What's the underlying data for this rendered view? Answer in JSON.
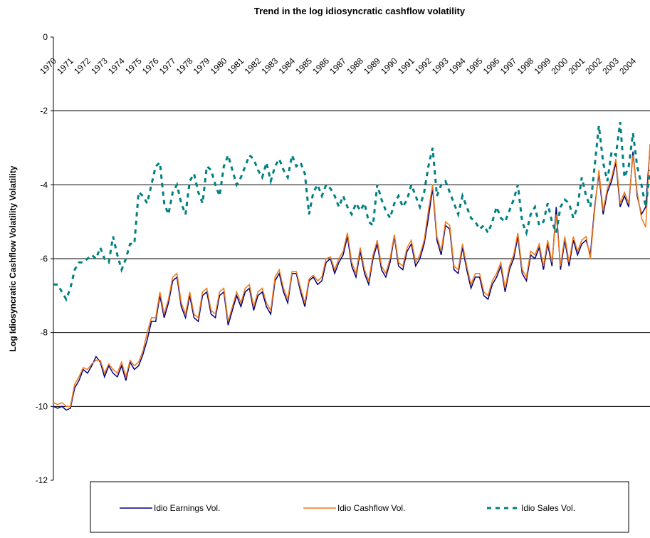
{
  "chart_data": {
    "type": "line",
    "title": "Trend in the log idiosyncratic cashflow volatility",
    "y_label": "Log Idiosyncratic Cashflow Volatility Volatility",
    "x": [
      1970,
      1970.25,
      1970.5,
      1970.75,
      1971,
      1971.25,
      1971.5,
      1971.75,
      1972,
      1972.25,
      1972.5,
      1972.75,
      1973,
      1973.25,
      1973.5,
      1973.75,
      1974,
      1974.25,
      1974.5,
      1974.75,
      1975,
      1975.25,
      1975.5,
      1975.75,
      1976,
      1976.25,
      1976.5,
      1976.75,
      1977,
      1977.25,
      1977.5,
      1977.75,
      1978,
      1978.25,
      1978.5,
      1978.75,
      1979,
      1979.25,
      1979.5,
      1979.75,
      1980,
      1980.25,
      1980.5,
      1980.75,
      1981,
      1981.25,
      1981.5,
      1981.75,
      1982,
      1982.25,
      1982.5,
      1982.75,
      1983,
      1983.25,
      1983.5,
      1983.75,
      1984,
      1984.25,
      1984.5,
      1984.75,
      1985,
      1985.25,
      1985.5,
      1985.75,
      1986,
      1986.25,
      1986.5,
      1986.75,
      1987,
      1987.25,
      1987.5,
      1987.75,
      1988,
      1988.25,
      1988.5,
      1988.75,
      1989,
      1989.25,
      1989.5,
      1989.75,
      1990,
      1990.25,
      1990.5,
      1990.75,
      1991,
      1991.25,
      1991.5,
      1991.75,
      1992,
      1992.25,
      1992.5,
      1992.75,
      1993,
      1993.25,
      1993.5,
      1993.75,
      1994,
      1994.25,
      1994.5,
      1994.75,
      1995,
      1995.25,
      1995.5,
      1995.75,
      1996,
      1996.25,
      1996.5,
      1996.75,
      1997,
      1997.25,
      1997.5,
      1997.75,
      1998,
      1998.25,
      1998.5,
      1998.75,
      1999,
      1999.25,
      1999.5,
      1999.75,
      2000,
      2000.25,
      2000.5,
      2000.75,
      2001,
      2001.25,
      2001.5,
      2001.75,
      2002,
      2002.25,
      2002.5,
      2002.75,
      2003,
      2003.25,
      2003.5,
      2003.75,
      2004,
      2004.25,
      2004.5,
      2004.75,
      2005
    ],
    "series": [
      {
        "name": "Idio Earnings Vol.",
        "color": "#000080",
        "values": [
          -10.0,
          -10.05,
          -10.0,
          -10.1,
          -10.05,
          -9.5,
          -9.3,
          -9.0,
          -9.1,
          -8.9,
          -8.65,
          -8.8,
          -9.2,
          -8.9,
          -9.1,
          -9.2,
          -8.9,
          -9.3,
          -8.8,
          -9.0,
          -8.9,
          -8.6,
          -8.2,
          -7.7,
          -7.7,
          -7.0,
          -7.6,
          -7.2,
          -6.6,
          -6.5,
          -7.3,
          -7.6,
          -7.0,
          -7.6,
          -7.7,
          -7.0,
          -6.9,
          -7.5,
          -7.6,
          -7.0,
          -6.9,
          -7.8,
          -7.4,
          -7.0,
          -7.3,
          -6.9,
          -6.8,
          -7.4,
          -7.0,
          -6.9,
          -7.3,
          -7.5,
          -6.6,
          -6.4,
          -6.9,
          -7.2,
          -6.4,
          -6.4,
          -6.9,
          -7.3,
          -6.6,
          -6.5,
          -6.7,
          -6.6,
          -6.1,
          -6.0,
          -6.4,
          -6.1,
          -5.9,
          -5.4,
          -6.2,
          -6.5,
          -5.8,
          -6.4,
          -6.7,
          -6.0,
          -5.6,
          -6.3,
          -6.5,
          -6.1,
          -5.4,
          -6.2,
          -6.3,
          -5.8,
          -5.6,
          -6.2,
          -6.0,
          -5.6,
          -4.9,
          -4.1,
          -5.5,
          -5.9,
          -5.1,
          -5.2,
          -6.3,
          -6.4,
          -5.7,
          -6.3,
          -6.8,
          -6.5,
          -6.5,
          -7.0,
          -7.1,
          -6.7,
          -6.5,
          -6.2,
          -6.9,
          -6.3,
          -6.0,
          -5.4,
          -6.4,
          -6.6,
          -5.9,
          -6.0,
          -5.7,
          -6.3,
          -5.6,
          -6.2,
          -4.6,
          -6.3,
          -5.5,
          -6.2,
          -5.5,
          -5.9,
          -5.6,
          -5.5,
          -5.9,
          -4.6,
          -3.7,
          -4.8,
          -4.2,
          -3.9,
          -3.4,
          -4.6,
          -4.3,
          -4.6,
          -3.1,
          -4.3,
          -4.8,
          -4.6,
          -3.0
        ]
      },
      {
        "name": "Idio Cashflow Vol.",
        "color": "#f07818",
        "values": [
          -9.9,
          -9.95,
          -9.9,
          -10.0,
          -10.0,
          -9.4,
          -9.2,
          -8.95,
          -9.0,
          -8.85,
          -8.75,
          -8.75,
          -9.1,
          -8.85,
          -9.0,
          -9.1,
          -8.8,
          -9.2,
          -8.75,
          -8.9,
          -8.8,
          -8.5,
          -8.0,
          -7.6,
          -7.6,
          -6.9,
          -7.5,
          -7.1,
          -6.5,
          -6.4,
          -7.2,
          -7.5,
          -6.9,
          -7.5,
          -7.6,
          -6.9,
          -6.8,
          -7.4,
          -7.5,
          -6.9,
          -6.8,
          -7.7,
          -7.3,
          -6.9,
          -7.2,
          -6.8,
          -6.7,
          -7.3,
          -6.9,
          -6.8,
          -7.2,
          -7.4,
          -6.5,
          -6.3,
          -6.8,
          -7.1,
          -6.35,
          -6.35,
          -6.8,
          -7.2,
          -6.55,
          -6.45,
          -6.6,
          -6.5,
          -6.0,
          -5.95,
          -6.3,
          -6.0,
          -5.8,
          -5.3,
          -6.1,
          -6.4,
          -5.7,
          -6.3,
          -6.6,
          -5.9,
          -5.5,
          -6.2,
          -6.4,
          -6.0,
          -5.35,
          -6.1,
          -6.2,
          -5.7,
          -5.5,
          -6.1,
          -5.9,
          -5.5,
          -4.7,
          -4.0,
          -5.4,
          -5.8,
          -5.0,
          -5.1,
          -6.2,
          -6.3,
          -5.6,
          -6.2,
          -6.7,
          -6.4,
          -6.4,
          -6.9,
          -7.0,
          -6.6,
          -6.4,
          -6.1,
          -6.8,
          -6.2,
          -5.9,
          -5.3,
          -6.3,
          -6.5,
          -5.8,
          -5.9,
          -5.6,
          -6.2,
          -5.5,
          -6.1,
          -4.8,
          -6.2,
          -5.4,
          -6.1,
          -5.4,
          -5.8,
          -5.5,
          -5.4,
          -6.0,
          -4.7,
          -3.6,
          -4.7,
          -4.1,
          -3.8,
          -3.3,
          -4.5,
          -4.2,
          -4.5,
          -3.2,
          -4.2,
          -4.9,
          -5.15,
          -2.9
        ]
      },
      {
        "name": "Idio Sales Vol.",
        "color": "#008080",
        "dashed": true,
        "values": [
          -6.7,
          -6.7,
          -6.9,
          -7.1,
          -6.8,
          -6.3,
          -6.1,
          -6.1,
          -6.0,
          -5.9,
          -6.0,
          -5.7,
          -6.0,
          -6.1,
          -5.4,
          -5.9,
          -6.3,
          -6.0,
          -5.6,
          -5.6,
          -4.2,
          -4.3,
          -4.5,
          -4.0,
          -3.5,
          -3.4,
          -4.5,
          -4.8,
          -4.2,
          -4.0,
          -4.5,
          -4.8,
          -3.9,
          -3.7,
          -4.2,
          -4.5,
          -3.5,
          -3.6,
          -4.0,
          -4.3,
          -3.5,
          -3.2,
          -3.6,
          -4.0,
          -3.8,
          -3.5,
          -3.2,
          -3.3,
          -3.6,
          -3.8,
          -3.4,
          -3.9,
          -3.5,
          -3.3,
          -3.6,
          -3.8,
          -3.2,
          -3.5,
          -3.4,
          -3.7,
          -4.8,
          -4.2,
          -4.0,
          -4.3,
          -4.0,
          -4.1,
          -4.3,
          -4.6,
          -4.3,
          -4.6,
          -4.8,
          -4.5,
          -4.7,
          -4.5,
          -5.0,
          -5.1,
          -4.0,
          -4.4,
          -4.7,
          -4.9,
          -4.5,
          -4.3,
          -4.6,
          -4.4,
          -4.0,
          -4.3,
          -4.6,
          -4.2,
          -3.5,
          -3.0,
          -4.3,
          -4.0,
          -3.9,
          -4.2,
          -4.5,
          -4.8,
          -4.3,
          -4.6,
          -4.9,
          -5.0,
          -5.2,
          -5.1,
          -5.3,
          -5.0,
          -4.6,
          -4.9,
          -5.0,
          -4.7,
          -4.4,
          -4.0,
          -5.0,
          -5.3,
          -4.8,
          -4.6,
          -5.1,
          -5.0,
          -4.5,
          -5.0,
          -5.3,
          -4.6,
          -4.4,
          -4.5,
          -4.9,
          -4.6,
          -3.8,
          -4.3,
          -4.6,
          -3.5,
          -2.4,
          -3.4,
          -3.9,
          -3.1,
          -3.2,
          -2.3,
          -3.8,
          -3.5,
          -2.6,
          -3.5,
          -4.0,
          -4.6,
          -3.6
        ]
      }
    ],
    "xlim": [
      1970,
      2005
    ],
    "xticks": [
      1970,
      1971,
      1972,
      1973,
      1974,
      1975,
      1976,
      1977,
      1978,
      1979,
      1980,
      1981,
      1982,
      1983,
      1984,
      1985,
      1986,
      1987,
      1988,
      1989,
      1990,
      1991,
      1992,
      1993,
      1994,
      1995,
      1996,
      1997,
      1998,
      1999,
      2000,
      2001,
      2002,
      2003,
      2004
    ],
    "ylim": [
      -12,
      0
    ],
    "yticks": [
      -12,
      -10,
      -8,
      -6,
      -4,
      -2,
      0
    ],
    "grid": true,
    "legend": "bottom"
  }
}
